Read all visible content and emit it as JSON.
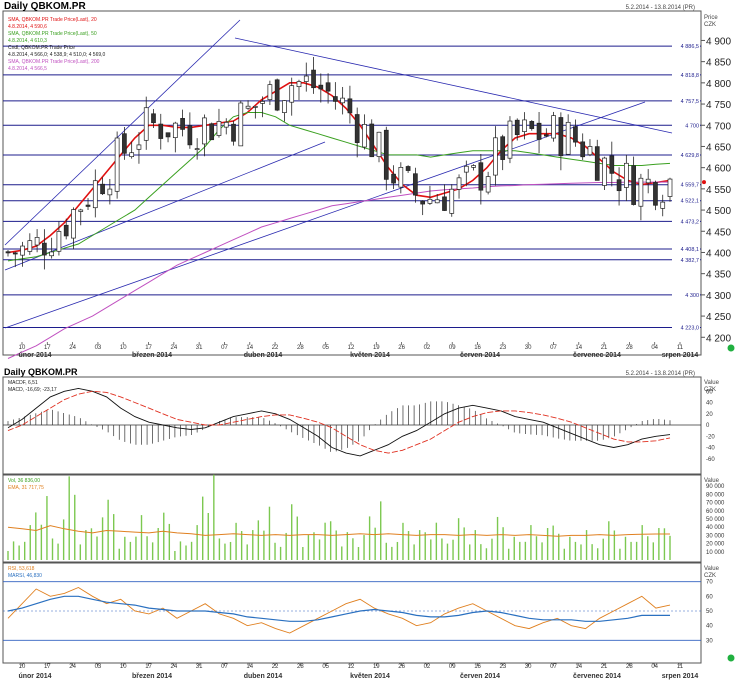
{
  "colors": {
    "sma20": "#e01010",
    "sma50": "#3aa020",
    "sma200": "#c050c0",
    "level": "#1c1c8c",
    "trend": "#2a2ab0",
    "candle_up": "#ffffff",
    "candle_down": "#333333",
    "macd": "#111111",
    "signal": "#e03020",
    "volume": "#7cc850",
    "volume_ema": "#e08020",
    "rsi": "#e08020",
    "rsi_ma": "#2a70c0",
    "rsi_band": "#3060c0",
    "dot": "#20b040"
  },
  "price_panel": {
    "title": "Daily QBKOM.PR",
    "date_range": "5.2.2014 - 13.8.2014 (PR)",
    "unit_header": "Price",
    "unit": "CZK",
    "legend": [
      {
        "label": "SMA, QBKOM.PR Trade Price(Last), 20",
        "values": "4.8.2014, 4 590,6"
      },
      {
        "label": "SMA, QBKOM.PR Trade Price(Last), 50",
        "values": "4.8.2014, 4 610,3"
      },
      {
        "label": "Cndl, QBKOM.PR Trade Price",
        "values": "4.8.2014, 4 566,0; 4 538,9; 4 510,0; 4 569,0"
      },
      {
        "label": "SMA, QBKOM.PR Trade Price(Last), 200",
        "values": "4.8.2014, 4 566,5"
      }
    ]
  },
  "macd_panel": {
    "date_range": "5.2.2014 - 13.8.2014 (PR)",
    "unit_header": "Value",
    "unit": "CZK",
    "legend": [
      {
        "label": "MACDF, 6,51"
      },
      {
        "label": "MACD, -16,69; -23,17"
      }
    ]
  },
  "volume_panel": {
    "unit_header": "Value",
    "legend": [
      {
        "label": "Vol, 36 836,00"
      },
      {
        "label": "EMA, 31 717,75"
      }
    ]
  },
  "rsi_panel": {
    "unit_header": "Value",
    "unit": "CZK",
    "legend": [
      {
        "label": "RSI, 53,618"
      },
      {
        "label": "MARSI, 46,830"
      }
    ]
  },
  "x_axis": {
    "day_ticks": [
      "10",
      "17",
      "24",
      "03",
      "10",
      "17",
      "24",
      "31",
      "07",
      "14",
      "22",
      "28",
      "05",
      "12",
      "19",
      "26",
      "02",
      "09",
      "16",
      "23",
      "30",
      "07",
      "14",
      "21",
      "28",
      "04",
      "11"
    ],
    "month_labels": [
      "únor 2014",
      "březen 2014",
      "duben 2014",
      "květen 2014",
      "červen 2014",
      "červenec 2014",
      "srpen 2014"
    ]
  },
  "chart_data": [
    {
      "type": "candlestick",
      "title": "Daily QBKOM.PR",
      "ylabel": "Price CZK",
      "ylim": [
        4170,
        4960
      ],
      "y_ticks": [
        4200,
        4250,
        4300,
        4350,
        4400,
        4450,
        4500,
        4550,
        4600,
        4650,
        4700,
        4750,
        4800,
        4850,
        4900
      ],
      "y_tick_labels": [
        "4 200",
        "4 250",
        "4 300",
        "4 350",
        "4 400",
        "4 450",
        "4 500",
        "4 550",
        "4 600",
        "4 650",
        "4 700",
        "4 750",
        "4 800",
        "4 850",
        "4 900"
      ],
      "levels": [
        {
          "value": 4886.5,
          "label": "4 886,5"
        },
        {
          "value": 4818.8,
          "label": "4 818,8"
        },
        {
          "value": 4757.5,
          "label": "4 757,5"
        },
        {
          "value": 4700,
          "label": "4 700"
        },
        {
          "value": 4629.8,
          "label": "4 629,8"
        },
        {
          "value": 4559.7,
          "label": "4 559,7"
        },
        {
          "value": 4522.1,
          "label": "4 522,1"
        },
        {
          "value": 4473.2,
          "label": "4 473,2"
        },
        {
          "value": 4408.1,
          "label": "4 408,1"
        },
        {
          "value": 4382.7,
          "label": "4 382,7"
        },
        {
          "value": 4300,
          "label": "4 300"
        },
        {
          "value": 4223.0,
          "label": "4 223,0"
        }
      ],
      "last_price": 4566,
      "series": [
        {
          "name": "SMA, QBKOM.PR Trade Price(Last), 20",
          "values": [
            4400,
            4405,
            4415,
            4440,
            4470,
            4510,
            4550,
            4590,
            4630,
            4670,
            4700,
            4700,
            4695,
            4695,
            4700,
            4705,
            4710,
            4730,
            4760,
            4780,
            4800,
            4800,
            4790,
            4770,
            4740,
            4700,
            4650,
            4600,
            4560,
            4535,
            4530,
            4540,
            4550,
            4570,
            4600,
            4640,
            4670,
            4680,
            4680,
            4680,
            4670,
            4650,
            4620,
            4590,
            4570,
            4560,
            4565,
            4570
          ]
        },
        {
          "name": "SMA, QBKOM.PR Trade Price(Last), 50",
          "values": [
            4380,
            4385,
            4390,
            4400,
            4410,
            4420,
            4440,
            4460,
            4480,
            4500,
            4530,
            4560,
            4590,
            4620,
            4650,
            4690,
            4720,
            4730,
            4730,
            4720,
            4700,
            4690,
            4680,
            4670,
            4660,
            4650,
            4640,
            4630,
            4630,
            4630,
            4625,
            4630,
            4635,
            4640,
            4640,
            4640,
            4640,
            4635,
            4630,
            4625,
            4620,
            4615,
            4610,
            4605,
            4605,
            4605,
            4608,
            4610
          ]
        },
        {
          "name": "SMA, QBKOM.PR Trade Price(Last), 200",
          "values": [
            4150,
            4165,
            4180,
            4200,
            4220,
            4235,
            4250,
            4270,
            4290,
            4310,
            4330,
            4350,
            4370,
            4385,
            4400,
            4415,
            4430,
            4445,
            4460,
            4470,
            4480,
            4490,
            4500,
            4510,
            4515,
            4520,
            4525,
            4530,
            4535,
            4540,
            4545,
            4548,
            4550,
            4552,
            4555,
            4557,
            4558,
            4560,
            4561,
            4562,
            4563,
            4564,
            4565,
            4565,
            4566,
            4566,
            4566,
            4566
          ]
        }
      ]
    },
    {
      "type": "line",
      "title": "MACD",
      "ylim": [
        -80,
        80
      ],
      "y_ticks": [
        60,
        40,
        20,
        0,
        -20,
        -40,
        -60
      ],
      "y_tick_labels": [
        "60",
        "40",
        "20",
        "0",
        "-20",
        "-40",
        "-60"
      ],
      "series": [
        {
          "name": "MACD",
          "values": [
            -5,
            10,
            30,
            50,
            60,
            65,
            60,
            50,
            30,
            15,
            5,
            0,
            -5,
            -8,
            -5,
            5,
            15,
            20,
            25,
            20,
            10,
            -5,
            -20,
            -40,
            -50,
            -55,
            -45,
            -35,
            -20,
            -10,
            5,
            20,
            30,
            35,
            30,
            25,
            15,
            10,
            5,
            -5,
            -15,
            -25,
            -35,
            -40,
            -35,
            -25,
            -20,
            -17
          ]
        },
        {
          "name": "Signal",
          "values": [
            -10,
            0,
            15,
            30,
            45,
            55,
            60,
            58,
            50,
            40,
            30,
            20,
            10,
            5,
            0,
            0,
            5,
            10,
            15,
            18,
            18,
            12,
            5,
            -5,
            -20,
            -35,
            -45,
            -50,
            -45,
            -35,
            -25,
            -10,
            5,
            15,
            22,
            25,
            25,
            22,
            18,
            12,
            5,
            -5,
            -15,
            -25,
            -30,
            -30,
            -28,
            -23
          ]
        }
      ]
    },
    {
      "type": "bar",
      "title": "Volume",
      "ylim": [
        0,
        100000
      ],
      "y_ticks": [
        10000,
        20000,
        30000,
        40000,
        50000,
        60000,
        70000,
        80000,
        90000
      ],
      "y_tick_labels": [
        "10 000",
        "20 000",
        "30 000",
        "40 000",
        "50 000",
        "60 000",
        "70 000",
        "80 000",
        "90 000"
      ],
      "series": [
        {
          "name": "Vol",
          "values": [
            20000,
            35000,
            60000,
            25000,
            90000,
            30000,
            40000,
            70000,
            25000,
            45000,
            30000,
            55000,
            20000,
            35000,
            80000,
            25000,
            40000,
            30000,
            50000,
            20000,
            60000,
            25000,
            35000,
            45000,
            30000,
            25000,
            55000,
            20000,
            40000,
            30000,
            35000,
            25000,
            45000,
            30000,
            20000,
            50000,
            25000,
            35000,
            30000,
            40000,
            25000,
            30000,
            20000,
            45000,
            25000,
            35000,
            30000,
            36836
          ]
        },
        {
          "name": "EMA",
          "values": [
            40000,
            38000,
            36000,
            42000,
            38000,
            35000,
            33000,
            36000,
            35000,
            34000,
            33000,
            35000,
            33000,
            32000,
            30000,
            31000,
            32000,
            31000,
            30000,
            31000,
            30000,
            31000,
            31000,
            30000,
            31000,
            32000,
            31000,
            32000,
            31000,
            30000,
            31000,
            31000,
            30000,
            31000,
            30000,
            31000,
            30000,
            31000,
            30000,
            29000,
            30000,
            30000,
            31000,
            30000,
            31000,
            31500,
            31700,
            31718
          ]
        }
      ]
    },
    {
      "type": "line",
      "title": "RSI",
      "ylim": [
        20,
        80
      ],
      "y_ticks": [
        30,
        40,
        50,
        60,
        70
      ],
      "y_tick_labels": [
        "30",
        "40",
        "50",
        "60",
        "70"
      ],
      "bands": [
        30,
        70
      ],
      "series": [
        {
          "name": "RSI",
          "values": [
            45,
            55,
            65,
            60,
            62,
            66,
            60,
            55,
            58,
            50,
            48,
            52,
            45,
            50,
            55,
            48,
            45,
            40,
            42,
            38,
            35,
            40,
            45,
            50,
            55,
            58,
            52,
            48,
            45,
            40,
            42,
            48,
            52,
            55,
            50,
            45,
            40,
            38,
            42,
            45,
            40,
            38,
            45,
            50,
            55,
            60,
            52,
            54
          ]
        },
        {
          "name": "MARSI",
          "values": [
            50,
            52,
            55,
            58,
            60,
            60,
            58,
            56,
            55,
            54,
            52,
            51,
            50,
            50,
            50,
            49,
            48,
            46,
            45,
            44,
            43,
            43,
            44,
            46,
            48,
            50,
            51,
            50,
            49,
            47,
            46,
            46,
            47,
            49,
            50,
            49,
            47,
            45,
            44,
            44,
            44,
            43,
            43,
            44,
            45,
            47,
            47,
            47
          ]
        }
      ]
    }
  ]
}
